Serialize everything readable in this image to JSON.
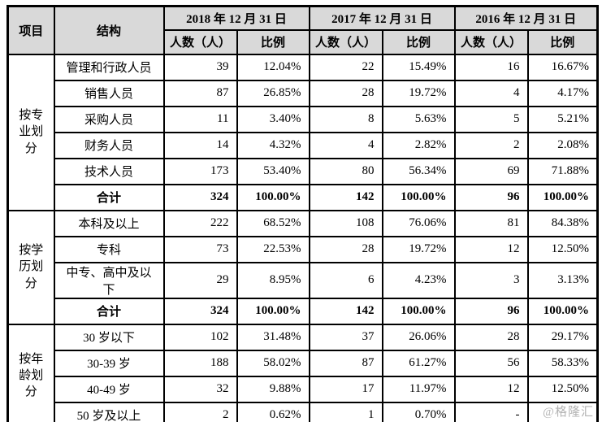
{
  "chart_data": {
    "type": "table",
    "header": {
      "item_label": "项目",
      "structure_label": "结构",
      "years": [
        "2018 年 12 月 31 日",
        "2017 年 12 月 31 日",
        "2016 年 12 月 31 日"
      ],
      "count_label": "人数（人）",
      "ratio_label": "比例"
    },
    "groups": [
      {
        "category": "按专业划分",
        "rows": [
          {
            "label": "管理和行政人员",
            "bold": false,
            "cells": [
              "39",
              "12.04%",
              "22",
              "15.49%",
              "16",
              "16.67%"
            ]
          },
          {
            "label": "销售人员",
            "bold": false,
            "cells": [
              "87",
              "26.85%",
              "28",
              "19.72%",
              "4",
              "4.17%"
            ]
          },
          {
            "label": "采购人员",
            "bold": false,
            "cells": [
              "11",
              "3.40%",
              "8",
              "5.63%",
              "5",
              "5.21%"
            ]
          },
          {
            "label": "财务人员",
            "bold": false,
            "cells": [
              "14",
              "4.32%",
              "4",
              "2.82%",
              "2",
              "2.08%"
            ]
          },
          {
            "label": "技术人员",
            "bold": false,
            "cells": [
              "173",
              "53.40%",
              "80",
              "56.34%",
              "69",
              "71.88%"
            ]
          },
          {
            "label": "合计",
            "bold": true,
            "cells": [
              "324",
              "100.00%",
              "142",
              "100.00%",
              "96",
              "100.00%"
            ]
          }
        ]
      },
      {
        "category": "按学历划分",
        "rows": [
          {
            "label": "本科及以上",
            "bold": false,
            "cells": [
              "222",
              "68.52%",
              "108",
              "76.06%",
              "81",
              "84.38%"
            ]
          },
          {
            "label": "专科",
            "bold": false,
            "cells": [
              "73",
              "22.53%",
              "28",
              "19.72%",
              "12",
              "12.50%"
            ]
          },
          {
            "label": "中专、高中及以下",
            "bold": false,
            "cells": [
              "29",
              "8.95%",
              "6",
              "4.23%",
              "3",
              "3.13%"
            ]
          },
          {
            "label": "合计",
            "bold": true,
            "cells": [
              "324",
              "100.00%",
              "142",
              "100.00%",
              "96",
              "100.00%"
            ]
          }
        ]
      },
      {
        "category": "按年龄划分",
        "rows": [
          {
            "label": "30 岁以下",
            "bold": false,
            "cells": [
              "102",
              "31.48%",
              "37",
              "26.06%",
              "28",
              "29.17%"
            ]
          },
          {
            "label": "30-39 岁",
            "bold": false,
            "cells": [
              "188",
              "58.02%",
              "87",
              "61.27%",
              "56",
              "58.33%"
            ]
          },
          {
            "label": "40-49 岁",
            "bold": false,
            "cells": [
              "32",
              "9.88%",
              "17",
              "11.97%",
              "12",
              "12.50%"
            ]
          },
          {
            "label": "50 岁及以上",
            "bold": false,
            "cells": [
              "2",
              "0.62%",
              "1",
              "0.70%",
              "-",
              ""
            ]
          }
        ]
      }
    ]
  },
  "watermark": "@格隆汇",
  "colors": {
    "header_bg": "#d9d9d9",
    "border": "#000000",
    "watermark": "#b3b3b3"
  }
}
